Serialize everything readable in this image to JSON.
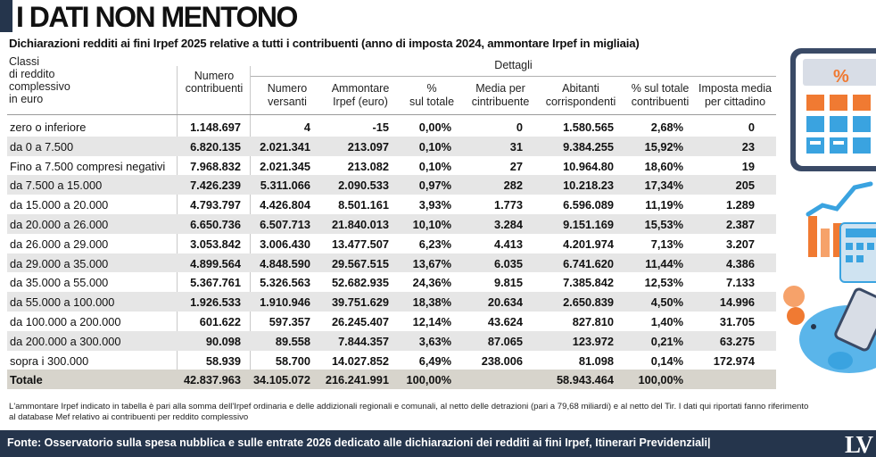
{
  "title": "I DATI NON MENTONO",
  "subtitle": "Dichiarazioni redditi ai fini Irpef 2025 relative a tutti i contribuenti (anno di imposta 2024, ammontare Irpef in migliaia)",
  "header": {
    "classi": [
      "Classi",
      "di reddito",
      "complessivo",
      "in euro"
    ],
    "numero_contribuenti": [
      "Numero",
      "contribuenti"
    ],
    "dettagli": "Dettagli",
    "subheaders": [
      [
        "Numero",
        "versanti"
      ],
      [
        "Ammontare",
        "Irpef (euro)"
      ],
      [
        "%",
        "sul totale"
      ],
      [
        "Media per",
        "cintribuente"
      ],
      [
        "Abitanti",
        "corrispondenti"
      ],
      [
        "% sul totale",
        "contribuenti"
      ],
      [
        "Imposta media",
        "per cittadino"
      ]
    ]
  },
  "rows": [
    [
      "zero o inferiore",
      "1.148.697",
      "4",
      "-15",
      "0,00%",
      "0",
      "1.580.565",
      "2,68%",
      "0"
    ],
    [
      "da 0 a 7.500",
      "6.820.135",
      "2.021.341",
      "213.097",
      "0,10%",
      "31",
      "9.384.255",
      "15,92%",
      "23"
    ],
    [
      "Fino a 7.500 compresi negativi",
      "7.968.832",
      "2.021.345",
      "213.082",
      "0,10%",
      "27",
      "10.964.80",
      "18,60%",
      "19"
    ],
    [
      "da 7.500 a 15.000",
      "7.426.239",
      "5.311.066",
      "2.090.533",
      "0,97%",
      "282",
      "10.218.23",
      "17,34%",
      "205"
    ],
    [
      "da 15.000 a 20.000",
      "4.793.797",
      "4.426.804",
      "8.501.161",
      "3,93%",
      "1.773",
      "6.596.089",
      "11,19%",
      "1.289"
    ],
    [
      "da 20.000 a 26.000",
      "6.650.736",
      "6.507.713",
      "21.840.013",
      "10,10%",
      "3.284",
      "9.151.169",
      "15,53%",
      "2.387"
    ],
    [
      "da 26.000 a 29.000",
      "3.053.842",
      "3.006.430",
      "13.477.507",
      "6,23%",
      "4.413",
      "4.201.974",
      "7,13%",
      "3.207"
    ],
    [
      "da 29.000 a 35.000",
      "4.899.564",
      "4.848.590",
      "29.567.515",
      "13,67%",
      "6.035",
      "6.741.620",
      "11,44%",
      "4.386"
    ],
    [
      "da 35.000 a 55.000",
      "5.367.761",
      "5.326.563",
      "52.682.935",
      "24,36%",
      "9.815",
      "7.385.842",
      "12,53%",
      "7.133"
    ],
    [
      "da 55.000 a 100.000",
      "1.926.533",
      "1.910.946",
      "39.751.629",
      "18,38%",
      "20.634",
      "2.650.839",
      "4,50%",
      "14.996"
    ],
    [
      "da 100.000 a 200.000",
      "601.622",
      "597.357",
      "26.245.407",
      "12,14%",
      "43.624",
      "827.810",
      "1,40%",
      "31.705"
    ],
    [
      "da 200.000 a 300.000",
      "90.098",
      "89.558",
      "7.844.357",
      "3,63%",
      "87.065",
      "123.972",
      "0,21%",
      "63.275"
    ],
    [
      "sopra i 300.000",
      "58.939",
      "58.700",
      "14.027.852",
      "6,49%",
      "238.006",
      "81.098",
      "0,14%",
      "172.974"
    ],
    [
      "Totale",
      "42.837.963",
      "34.105.072",
      "216.241.991",
      "100,00%",
      "",
      "58.943.464",
      "100,00%",
      ""
    ]
  ],
  "note": [
    "L'ammontare Irpef indicato in tabella è pari alla somma dell'Irpef ordinaria e delle addizionali regionali e comunali, al netto delle detrazioni (pari a 79,68 miliardi) e al netto del Tir. I dati qui riportati fanno riferimento",
    "al database Mef relativo ai contribuenti per reddito complessivo"
  ],
  "footer": "Fonte: Osservatorio sulla spesa nubblica e sulle entrate 2026 dedicato alle dichiarazioni dei redditi ai fini Irpef, Itinerari Previdenziali|",
  "logo": "LV",
  "colors": {
    "navy": "#25354c",
    "stripe": "#e6e6e6",
    "total": "#d7d4cc",
    "orange": "#f07a32",
    "blue": "#3aa3e0"
  },
  "icons": [
    "calculator-icon",
    "growth-chart-icon",
    "piggy-bank-icon",
    "percent-icon"
  ]
}
